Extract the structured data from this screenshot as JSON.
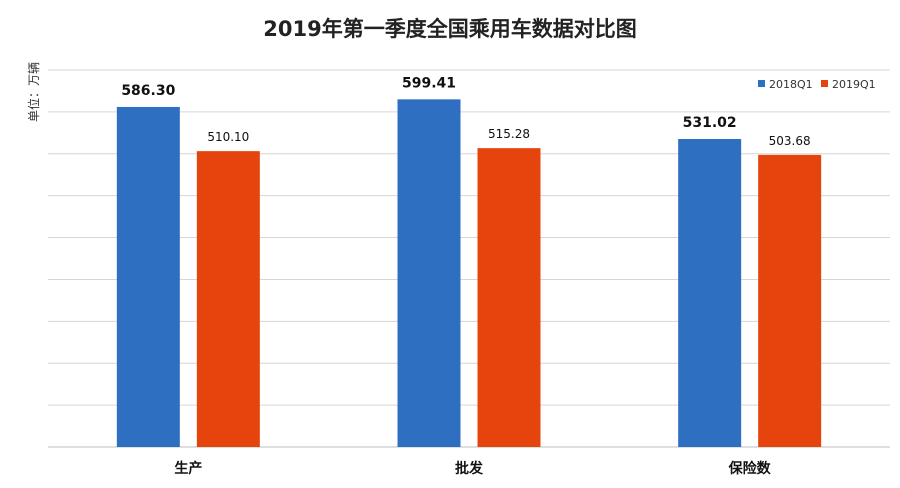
{
  "chart_data": {
    "type": "bar",
    "title": "2019年第一季度全国乘用车数据对比图",
    "ylabel": "单位：万辆",
    "xlabel": "",
    "categories": [
      "生产",
      "批发",
      "保险数"
    ],
    "series": [
      {
        "name": "2018Q1",
        "values": [
          586.3,
          599.41,
          531.02
        ],
        "labels": [
          "586.30",
          "599.41",
          "531.02"
        ],
        "color": "#2e6fc1"
      },
      {
        "name": "2019Q1",
        "values": [
          510.1,
          515.28,
          503.68
        ],
        "labels": [
          "510.10",
          "515.28",
          "503.68"
        ],
        "color": "#e5450c"
      }
    ],
    "ylim": [
      0,
      650
    ],
    "grid": true,
    "legend": "top-right"
  }
}
